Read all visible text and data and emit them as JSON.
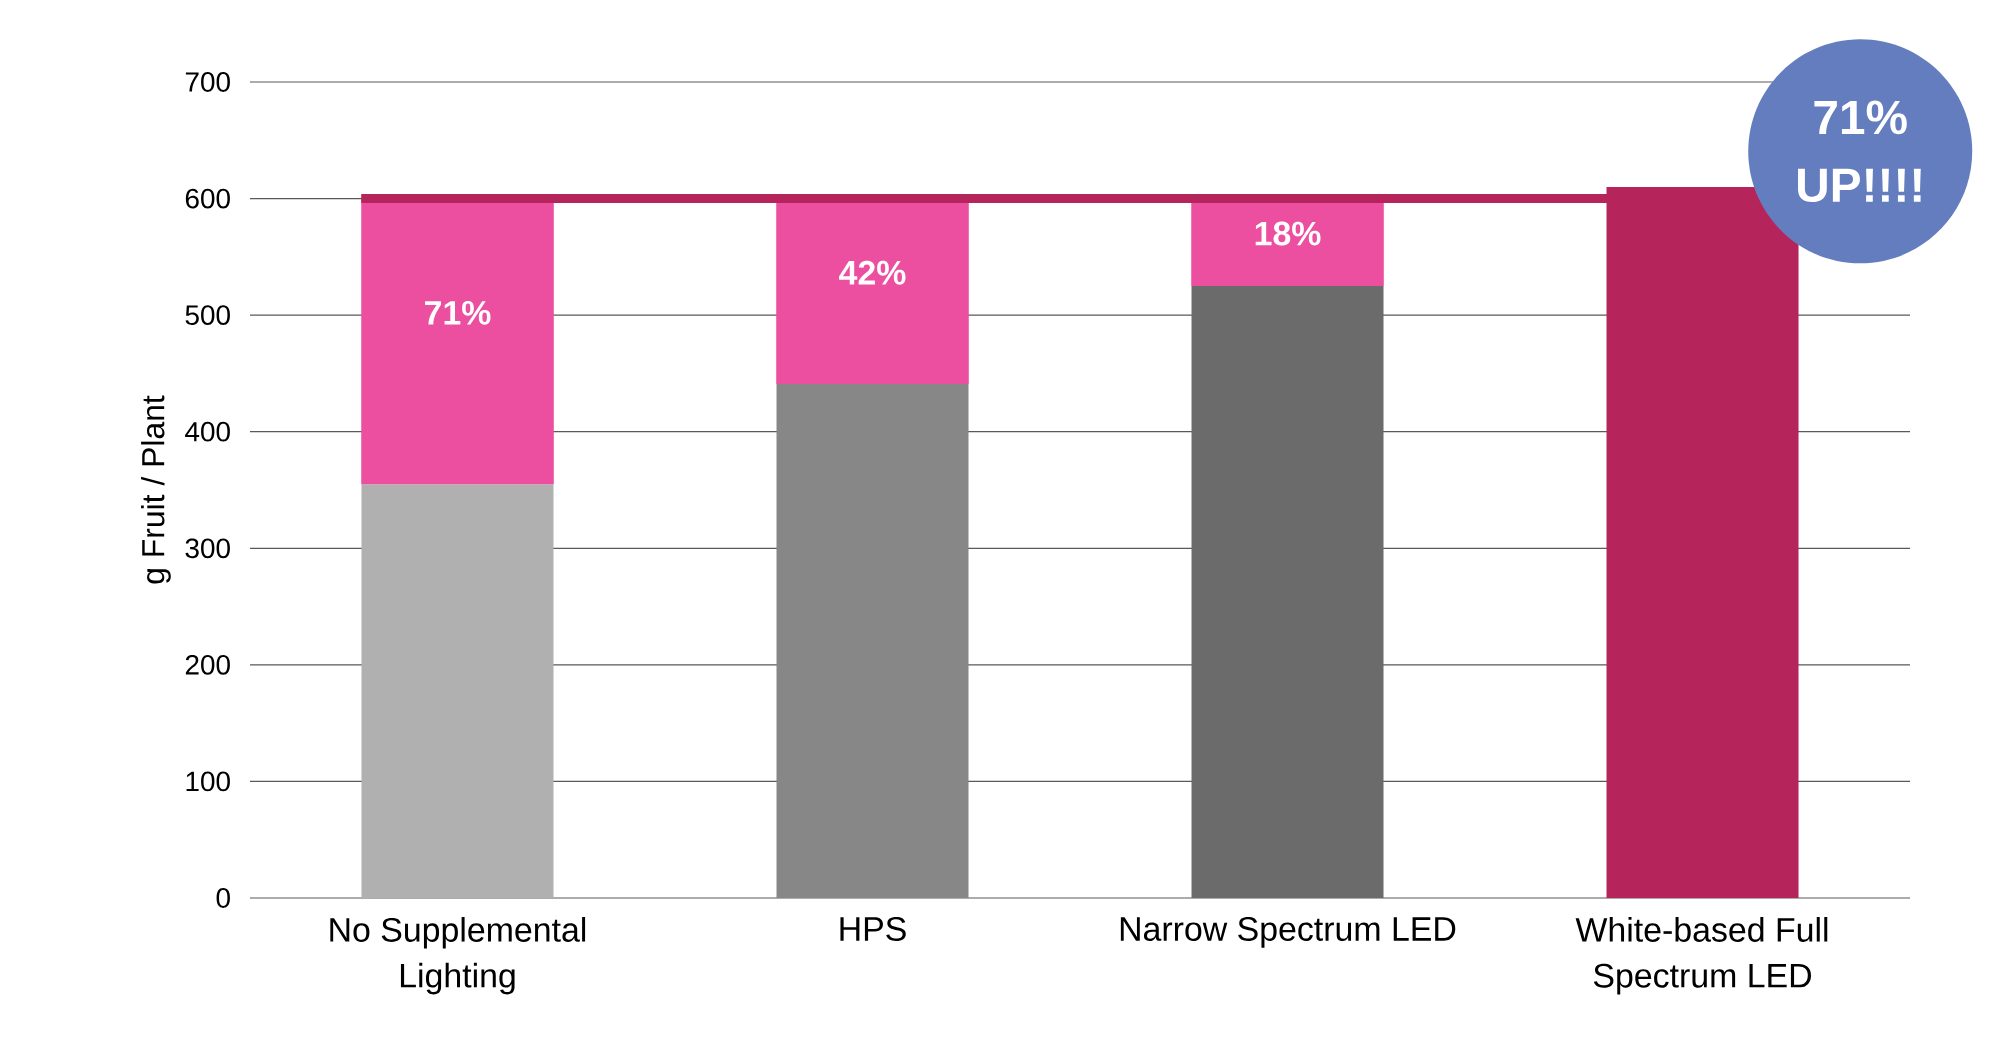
{
  "chart_data": {
    "type": "bar",
    "ylabel": "g Fruit / Plant",
    "categories": [
      "No Supplemental Lighting",
      "HPS",
      "Narrow Spectrum LED",
      "White-based Full Spectrum LED"
    ],
    "stacked": true,
    "series": [
      {
        "colors": [
          "#b0b0b0",
          "#878787",
          "#6b6b6b",
          "#b5245a"
        ],
        "values": [
          355,
          441,
          525,
          610
        ]
      },
      {
        "color": "#ec4fa0",
        "values": [
          245,
          159,
          75,
          null
        ]
      }
    ],
    "ylim": [
      0,
      700
    ],
    "yticks": [
      0,
      100,
      200,
      300,
      400,
      500,
      600,
      700
    ],
    "grid": "y",
    "ref_lines": [
      {
        "axis": "y",
        "value": 600,
        "color": "#b5245a"
      }
    ],
    "annotations": [
      "71%",
      "42%",
      "18%",
      "71% UP!!!!"
    ]
  }
}
